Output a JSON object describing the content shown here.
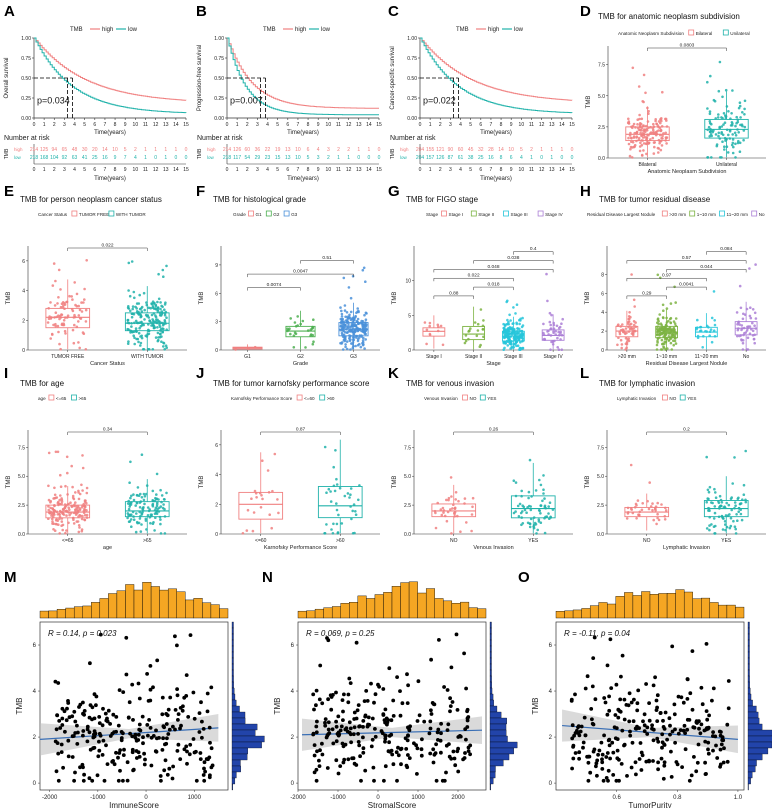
{
  "colors": {
    "high": "#f08080",
    "low": "#20b2aa",
    "c1": "#f08080",
    "c2": "#20b2aa",
    "g1": "#f08080",
    "g2": "#4caf50",
    "g3": "#4a90d9",
    "s1": "#f08080",
    "s2": "#7cb342",
    "s3": "#26c6da",
    "s4": "#ab7fd6",
    "hist": "#f5a623",
    "hist2": "#2244aa",
    "line": "#3a6fb5"
  },
  "chart_data": [
    {
      "panel": "A",
      "type": "line",
      "ylabel": "Overall survival",
      "xlabel": "Time(years)",
      "legend_title": "TMB",
      "legend": [
        "high",
        "low"
      ],
      "xticks": [
        "0",
        "1",
        "2",
        "3",
        "4",
        "5",
        "6",
        "7",
        "8",
        "9",
        "10",
        "11",
        "12",
        "13",
        "14",
        "15"
      ],
      "yticks": [
        "0.00",
        "0.25",
        "0.50",
        "0.75",
        "1.00"
      ],
      "pvalue": "p=0.034",
      "risk_title": "Number at risk",
      "risk_ylabel": "TMB",
      "risk_high": [
        "214",
        "125",
        "94",
        "65",
        "48",
        "30",
        "20",
        "14",
        "10",
        "5",
        "2",
        "1",
        "1",
        "1",
        "1",
        "0"
      ],
      "risk_low": [
        "218",
        "168",
        "104",
        "92",
        "63",
        "41",
        "25",
        "16",
        "9",
        "7",
        "4",
        "1",
        "0",
        "1",
        "0",
        "0"
      ]
    },
    {
      "panel": "B",
      "type": "line",
      "ylabel": "Progression-free survival",
      "xlabel": "Time(years)",
      "legend_title": "TMB",
      "legend": [
        "high",
        "low"
      ],
      "xticks": [
        "0",
        "1",
        "2",
        "3",
        "4",
        "5",
        "6",
        "7",
        "8",
        "9",
        "10",
        "11",
        "12",
        "13",
        "14",
        "15"
      ],
      "yticks": [
        "0.00",
        "0.25",
        "0.50",
        "0.75",
        "1.00"
      ],
      "pvalue": "p=0.007",
      "risk_title": "Number at risk",
      "risk_ylabel": "TMB",
      "risk_high": [
        "214",
        "126",
        "60",
        "36",
        "22",
        "19",
        "13",
        "10",
        "6",
        "4",
        "3",
        "2",
        "2",
        "1",
        "1",
        "0"
      ],
      "risk_low": [
        "218",
        "117",
        "54",
        "29",
        "23",
        "15",
        "13",
        "10",
        "5",
        "3",
        "2",
        "1",
        "1",
        "0",
        "0",
        "0"
      ]
    },
    {
      "panel": "C",
      "type": "line",
      "ylabel": "Cancer-specific survival",
      "xlabel": "Time(years)",
      "legend_title": "TMB",
      "legend": [
        "high",
        "low"
      ],
      "xticks": [
        "0",
        "1",
        "2",
        "3",
        "4",
        "5",
        "6",
        "7",
        "8",
        "9",
        "10",
        "11",
        "12",
        "13",
        "14",
        "15"
      ],
      "yticks": [
        "0.00",
        "0.25",
        "0.50",
        "0.75",
        "1.00"
      ],
      "pvalue": "p=0.022",
      "risk_title": "Number at risk",
      "risk_ylabel": "TMB",
      "risk_high": [
        "204",
        "155",
        "121",
        "90",
        "60",
        "45",
        "32",
        "28",
        "14",
        "10",
        "5",
        "2",
        "1",
        "1",
        "1",
        "0"
      ],
      "risk_low": [
        "204",
        "157",
        "126",
        "87",
        "61",
        "38",
        "25",
        "16",
        "8",
        "6",
        "4",
        "1",
        "0",
        "1",
        "0",
        "0"
      ]
    },
    {
      "panel": "D",
      "type": "box",
      "title": "TMB for anatomic neoplasm subdivision",
      "legend_title": "Anatomic Neoplasm Subdivision",
      "categories": [
        "Bilateral",
        "Unilateral"
      ],
      "xlabel": "Anatomic Neoplasm Subdivision",
      "ylabel": "TMB",
      "yticks": [
        "0.0",
        "2.5",
        "5.0",
        "7.5"
      ],
      "ymax": 9,
      "medians": [
        1.9,
        2.3
      ],
      "q1": [
        1.4,
        1.6
      ],
      "q3": [
        2.5,
        3.1
      ],
      "brackets": [
        {
          "from": 0,
          "to": 1,
          "label": "0.0803"
        }
      ]
    },
    {
      "panel": "E",
      "type": "box",
      "title": "TMB for person neoplasm cancer status",
      "legend_title": "Cancer Status",
      "categories": [
        "TUMOR FREE",
        "WITH TUMOR"
      ],
      "xlabel": "Cancer Status",
      "ylabel": "TMB",
      "yticks": [
        "0",
        "2",
        "4",
        "6"
      ],
      "ymax": 7,
      "medians": [
        2.2,
        1.8
      ],
      "q1": [
        1.5,
        1.3
      ],
      "q3": [
        2.8,
        2.5
      ],
      "brackets": [
        {
          "from": 0,
          "to": 1,
          "label": "0.022"
        }
      ]
    },
    {
      "panel": "F",
      "type": "box",
      "title": "TMB for histological grade",
      "legend_title": "Grade",
      "categories": [
        "G1",
        "G2",
        "G3"
      ],
      "xlabel": "Grade",
      "ylabel": "TMB",
      "yticks": [
        "0",
        "3",
        "6",
        "9"
      ],
      "ymax": 11,
      "medians": [
        0.2,
        2.0,
        2.2
      ],
      "q1": [
        0.1,
        1.4,
        1.5
      ],
      "q3": [
        0.3,
        2.5,
        2.9
      ],
      "brackets": [
        {
          "from": 0,
          "to": 1,
          "label": "0.0074"
        },
        {
          "from": 0,
          "to": 2,
          "label": "0.0047"
        },
        {
          "from": 1,
          "to": 2,
          "label": "0.51"
        }
      ]
    },
    {
      "panel": "G",
      "type": "box",
      "title": "TMB for FIGO stage",
      "legend_title": "Stage",
      "categories": [
        "Stage I",
        "Stage II",
        "Stage III",
        "Stage IV"
      ],
      "xlabel": "Stage",
      "ylabel": "TMB",
      "yticks": [
        "0",
        "5",
        "10"
      ],
      "ymax": 15,
      "medians": [
        2.7,
        2.3,
        2.0,
        2.1
      ],
      "q1": [
        2.0,
        1.5,
        1.3,
        1.4
      ],
      "q3": [
        3.2,
        3.4,
        2.7,
        2.9
      ],
      "brackets": [
        {
          "from": 0,
          "to": 1,
          "label": "0.88"
        },
        {
          "from": 1,
          "to": 2,
          "label": "0.018"
        },
        {
          "from": 0,
          "to": 2,
          "label": "0.022"
        },
        {
          "from": 0,
          "to": 3,
          "label": "0.048"
        },
        {
          "from": 1,
          "to": 3,
          "label": "0.038"
        },
        {
          "from": 2,
          "to": 3,
          "label": "0.4"
        }
      ]
    },
    {
      "panel": "H",
      "type": "box",
      "title": "TMB for tumor residual disease",
      "legend_title": "Residual Disease Largest Nodule",
      "categories": [
        ">20 mm",
        "1~10 mm",
        "11~20 mm",
        "No"
      ],
      "xlabel": "Residual Disease Largest Nodule",
      "ylabel": "TMB",
      "yticks": [
        "0",
        "2",
        "4",
        "6",
        "8"
      ],
      "ymax": 11,
      "medians": [
        2.0,
        1.9,
        1.9,
        2.3
      ],
      "q1": [
        1.4,
        1.3,
        1.4,
        1.6
      ],
      "q3": [
        2.5,
        2.5,
        2.4,
        3.0
      ],
      "brackets": [
        {
          "from": 0,
          "to": 1,
          "label": "0.29"
        },
        {
          "from": 1,
          "to": 2,
          "label": "0.0041"
        },
        {
          "from": 0,
          "to": 2,
          "label": "0.97"
        },
        {
          "from": 1,
          "to": 3,
          "label": "0.044"
        },
        {
          "from": 0,
          "to": 3,
          "label": "0.57"
        },
        {
          "from": 2,
          "to": 3,
          "label": "0.084"
        }
      ]
    },
    {
      "panel": "I",
      "type": "box",
      "title": "TMB for age",
      "legend_title": "age",
      "categories": [
        "<=65",
        ">65"
      ],
      "xlabel": "age",
      "ylabel": "TMB",
      "yticks": [
        "0.0",
        "2.5",
        "5.0",
        "7.5"
      ],
      "ymax": 9,
      "medians": [
        1.9,
        2.0
      ],
      "q1": [
        1.4,
        1.5
      ],
      "q3": [
        2.5,
        2.8
      ],
      "brackets": [
        {
          "from": 0,
          "to": 1,
          "label": "0.34"
        }
      ]
    },
    {
      "panel": "J",
      "type": "box",
      "title": "TMB for tumor karnofsky performance score",
      "legend_title": "Karnofsky Performance Score",
      "categories": [
        "<=60",
        ">60"
      ],
      "xlabel": "Karnofsky Performance Score",
      "ylabel": "TMB",
      "yticks": [
        "0",
        "2",
        "4",
        "6"
      ],
      "ymax": 7,
      "medians": [
        2.0,
        1.9
      ],
      "q1": [
        1.0,
        1.1
      ],
      "q3": [
        2.8,
        3.2
      ],
      "brackets": [
        {
          "from": 0,
          "to": 1,
          "label": "0.87"
        }
      ]
    },
    {
      "panel": "K",
      "type": "box",
      "title": "TMB for venous invasion",
      "legend_title": "Venous Invasion",
      "categories": [
        "NO",
        "YES"
      ],
      "xlabel": "Venous Invasion",
      "ylabel": "TMB",
      "yticks": [
        "0.0",
        "2.5",
        "5.0",
        "7.5"
      ],
      "ymax": 9,
      "medians": [
        2.0,
        2.2
      ],
      "q1": [
        1.5,
        1.4
      ],
      "q3": [
        2.6,
        3.3
      ],
      "brackets": [
        {
          "from": 0,
          "to": 1,
          "label": "0.26"
        }
      ]
    },
    {
      "panel": "L",
      "type": "box",
      "title": "TMB for lymphatic invasion",
      "legend_title": "Lymphatic Invasion",
      "categories": [
        "NO",
        "YES"
      ],
      "xlabel": "Lymphatic Invasion",
      "ylabel": "TMB",
      "yticks": [
        "0.0",
        "2.5",
        "5.0",
        "7.5"
      ],
      "ymax": 9,
      "medians": [
        1.9,
        2.2
      ],
      "q1": [
        1.5,
        1.5
      ],
      "q3": [
        2.3,
        2.9
      ],
      "brackets": [
        {
          "from": 0,
          "to": 1,
          "label": "0.2"
        }
      ]
    },
    {
      "panel": "M",
      "type": "scatter",
      "xlabel": "ImmuneScore",
      "ylabel": "TMB",
      "annotation": "R = 0.14, p = 0.023",
      "xticks": [
        "-2000",
        "-1000",
        "0",
        "1000"
      ],
      "xvals": [
        -2000,
        -1000,
        0,
        1000
      ],
      "xlim": [
        -2200,
        1700
      ],
      "yticks": [
        "0",
        "2",
        "4",
        "6"
      ],
      "ylim": [
        -0.3,
        7
      ],
      "fit": [
        [
          -2200,
          1.9
        ],
        [
          1500,
          2.4
        ]
      ]
    },
    {
      "panel": "N",
      "type": "scatter",
      "xlabel": "StromalScore",
      "ylabel": "TMB",
      "annotation": "R = 0.069, p = 0.25",
      "xticks": [
        "-2000",
        "-1000",
        "0",
        "1000",
        "2000"
      ],
      "xvals": [
        -2000,
        -1000,
        0,
        1000,
        2000
      ],
      "xlim": [
        -2000,
        2700
      ],
      "yticks": [
        "0",
        "2",
        "4",
        "6"
      ],
      "ylim": [
        -0.3,
        7
      ],
      "fit": [
        [
          -1900,
          2.1
        ],
        [
          2600,
          2.3
        ]
      ]
    },
    {
      "panel": "O",
      "type": "scatter",
      "xlabel": "TumorPurity",
      "ylabel": "TMB",
      "annotation": "R = -0.11, p = 0.04",
      "xticks": [
        "0.6",
        "0.8",
        "1.0"
      ],
      "xvals": [
        0.6,
        0.8,
        1.0
      ],
      "xlim": [
        0.4,
        1.02
      ],
      "yticks": [
        "0",
        "2",
        "4",
        "6"
      ],
      "ylim": [
        -0.3,
        7
      ],
      "fit": [
        [
          0.42,
          2.5
        ],
        [
          1.0,
          1.9
        ]
      ]
    }
  ]
}
